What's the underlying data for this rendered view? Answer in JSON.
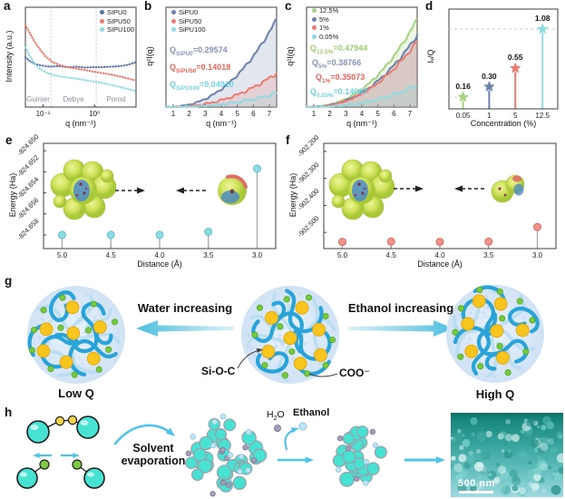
{
  "chart_data": [
    {
      "panel": "a",
      "letter": "a",
      "type": "scatter",
      "xscale": "log",
      "xlabel": "q (nm⁻¹)",
      "ylabel": "Intensity (a.u.)",
      "x_tick_labels": [
        "10⁻¹",
        "10⁰"
      ],
      "x_tick_pos": [
        0.16,
        0.625
      ],
      "region_dividers": [
        0.23,
        0.64
      ],
      "regions": [
        "Guinier",
        "Debye",
        "Porod"
      ],
      "series": [
        {
          "name": "SIPU0",
          "color": "#5b74a8",
          "points": [
            [
              0,
              0.5
            ],
            [
              0.04,
              0.54
            ],
            [
              0.09,
              0.57
            ],
            [
              0.15,
              0.585
            ],
            [
              0.22,
              0.595
            ],
            [
              0.3,
              0.59
            ],
            [
              0.38,
              0.6
            ],
            [
              0.46,
              0.595
            ],
            [
              0.54,
              0.605
            ],
            [
              0.62,
              0.6
            ],
            [
              0.7,
              0.6
            ],
            [
              0.78,
              0.595
            ],
            [
              0.86,
              0.59
            ],
            [
              0.93,
              0.575
            ],
            [
              1,
              0.55
            ]
          ]
        },
        {
          "name": "SIPU50",
          "color": "#ee7a70",
          "points": [
            [
              0,
              0.18
            ],
            [
              0.04,
              0.26
            ],
            [
              0.08,
              0.34
            ],
            [
              0.13,
              0.42
            ],
            [
              0.18,
              0.49
            ],
            [
              0.24,
              0.545
            ],
            [
              0.3,
              0.575
            ],
            [
              0.38,
              0.6
            ],
            [
              0.46,
              0.615
            ],
            [
              0.54,
              0.63
            ],
            [
              0.62,
              0.645
            ],
            [
              0.7,
              0.66
            ],
            [
              0.78,
              0.675
            ],
            [
              0.86,
              0.695
            ],
            [
              0.93,
              0.715
            ],
            [
              1,
              0.735
            ]
          ]
        },
        {
          "name": "SIPU100",
          "color": "#8edce2",
          "points": [
            [
              0,
              0.4
            ],
            [
              0.04,
              0.49
            ],
            [
              0.08,
              0.56
            ],
            [
              0.13,
              0.615
            ],
            [
              0.18,
              0.65
            ],
            [
              0.24,
              0.675
            ],
            [
              0.3,
              0.69
            ],
            [
              0.38,
              0.705
            ],
            [
              0.46,
              0.715
            ],
            [
              0.54,
              0.73
            ],
            [
              0.62,
              0.745
            ],
            [
              0.7,
              0.76
            ],
            [
              0.78,
              0.78
            ],
            [
              0.86,
              0.8
            ],
            [
              0.93,
              0.82
            ],
            [
              1,
              0.84
            ]
          ]
        }
      ]
    },
    {
      "panel": "b",
      "letter": "b",
      "type": "scatter",
      "exponent": 2.3,
      "xlabel": "q (nm⁻¹)",
      "ylabel": "q²I(q)",
      "x_ticks": [
        1,
        2,
        3,
        4,
        5,
        6,
        7
      ],
      "x_range": [
        0.55,
        7.45
      ],
      "series": [
        {
          "name": "SiPU0",
          "color": "#6b80ad",
          "invariant_Q": 0.29574,
          "end_fraction": 0.88
        },
        {
          "name": "SiPU50",
          "color": "#ee7a70",
          "invariant_Q": 0.14018,
          "end_fraction": 0.34
        },
        {
          "name": "SiPU100",
          "color": "#8edce2",
          "invariant_Q": 0.0491,
          "end_fraction": 0.14
        }
      ],
      "annotations": [
        {
          "q": "Q",
          "sub": "SiPU0",
          "val": "=0.29574",
          "color": "#8593b8"
        },
        {
          "q": "Q",
          "sub": "SiPU50",
          "val": "=0.14018",
          "color": "#ed6157"
        },
        {
          "q": "Q",
          "sub": "SiPU100",
          "val": "=0.04910",
          "color": "#70d4df"
        }
      ]
    },
    {
      "panel": "c",
      "letter": "c",
      "type": "scatter",
      "exponent": 2.3,
      "xlabel": "q (nm⁻¹)",
      "ylabel": "q²I(q)",
      "x_ticks": [
        1,
        2,
        3,
        4,
        5,
        6,
        7
      ],
      "x_range": [
        0.55,
        7.45
      ],
      "series": [
        {
          "name": "12.5%",
          "color": "#a5d37e",
          "invariant_Q": 0.47944,
          "end_fraction": 0.88
        },
        {
          "name": "5%",
          "color": "#6b80ad",
          "invariant_Q": 0.38766,
          "end_fraction": 0.72
        },
        {
          "name": "1%",
          "color": "#ee7a70",
          "invariant_Q": 0.35073,
          "end_fraction": 0.66
        },
        {
          "name": "0.05%",
          "color": "#8edce2",
          "invariant_Q": 0.14087,
          "end_fraction": 0.22
        }
      ],
      "annotations": [
        {
          "q": "Q",
          "sub": "12.5%",
          "val": "=0.47944",
          "color": "#9ccf6f"
        },
        {
          "q": "Q",
          "sub": "5%",
          "val": "=0.38766",
          "color": "#8593b8"
        },
        {
          "q": "Q",
          "sub": "1%",
          "val": "=0.35073",
          "color": "#ed6157"
        },
        {
          "q": "Q",
          "sub": "0.05%",
          "val": "=0.14087",
          "color": "#70d4df"
        }
      ]
    },
    {
      "panel": "d",
      "letter": "d",
      "type": "lollipop",
      "xlabel": "Concentration (%)",
      "ylabel": "Iᵥ/Q",
      "categories": [
        "0.05",
        "1",
        "5",
        "12.5"
      ],
      "values": [
        0.16,
        0.3,
        0.55,
        1.08
      ],
      "value_labels": [
        "0.16",
        "0.30",
        "0.55",
        "1.08"
      ],
      "colors": [
        "#a5d37e",
        "#6b80ad",
        "#ee7a70",
        "#8edce2"
      ],
      "ylim": [
        0,
        1.35
      ],
      "cat_pos": [
        0.13,
        0.37,
        0.61,
        0.86
      ],
      "dashed_levels": [
        1.08,
        0.16
      ]
    },
    {
      "panel": "e",
      "letter": "e",
      "type": "stem",
      "xlabel": "Distance (Å)",
      "ylabel": "Energy (Ha)",
      "x_labels": [
        "5.0",
        "4.5",
        "4.0",
        "3.5",
        "3.0"
      ],
      "x": [
        5.0,
        4.5,
        4.0,
        3.5,
        3.0
      ],
      "x_pos": [
        0.08,
        0.29,
        0.5,
        0.71,
        0.92
      ],
      "x_axis_reversed": true,
      "y": [
        -824.658,
        -824.658,
        -824.658,
        -824.6577,
        -824.6517
      ],
      "y_tick_labels": [
        "-824.650",
        "-824.652",
        "-824.654",
        "-824.656",
        "-824.658"
      ],
      "y_ticks": [
        -824.65,
        -824.652,
        -824.654,
        -824.656,
        -824.658
      ],
      "ylim": [
        -824.6593,
        -824.6493
      ],
      "marker_color": "#8edce2",
      "marker_stroke": "#5fc3cf"
    },
    {
      "panel": "f",
      "letter": "f",
      "type": "stem",
      "xlabel": "Distance (Å)",
      "ylabel": "Energy (Ha)",
      "x_labels": [
        "5.0",
        "4.5",
        "4.0",
        "3.5",
        "3.0"
      ],
      "x": [
        5.0,
        4.5,
        4.0,
        3.5,
        3.0
      ],
      "x_pos": [
        0.08,
        0.29,
        0.5,
        0.71,
        0.92
      ],
      "x_axis_reversed": true,
      "y": [
        -902.535,
        -902.534,
        -902.535,
        -902.534,
        -902.48
      ],
      "y_tick_labels": [
        "-902.200",
        "-902.300",
        "-902.400",
        "-902.500"
      ],
      "y_ticks": [
        -902.2,
        -902.3,
        -902.4,
        -902.5
      ],
      "ylim": [
        -902.56,
        -902.17
      ],
      "marker_color": "#f0928a",
      "marker_stroke": "#d66c63"
    }
  ],
  "panel_g": {
    "letter": "g",
    "arrow_left_label": "Water increasing",
    "arrow_right_label": "Ethanol increasing",
    "left_blob_label": "Low Q",
    "right_blob_label": "High Q",
    "callout_si": "Si-O-C",
    "callout_coo": "COO⁻",
    "colors": {
      "chain": "#29a3d8",
      "chain_light": "#b5ddf0",
      "node_yellow": "#f7c51e",
      "node_green": "#76c83d",
      "blob_bg": "#dbe9f8",
      "arrow": "#52bfe0"
    }
  },
  "panel_h": {
    "letter": "h",
    "solvent_label": "Solvent evaporation",
    "h2o": {
      "pre": "H",
      "sub": "2",
      "post": "O"
    },
    "ethanol_label": "Ethanol",
    "scale_bar_label": "500 nm",
    "colors": {
      "particle": "#48e2d2",
      "particle_edge": "#98a2ad",
      "water_dot": "#a39fb8",
      "ethanol_dot": "#bfe4f2",
      "arrow": "#4fc3e8"
    }
  }
}
